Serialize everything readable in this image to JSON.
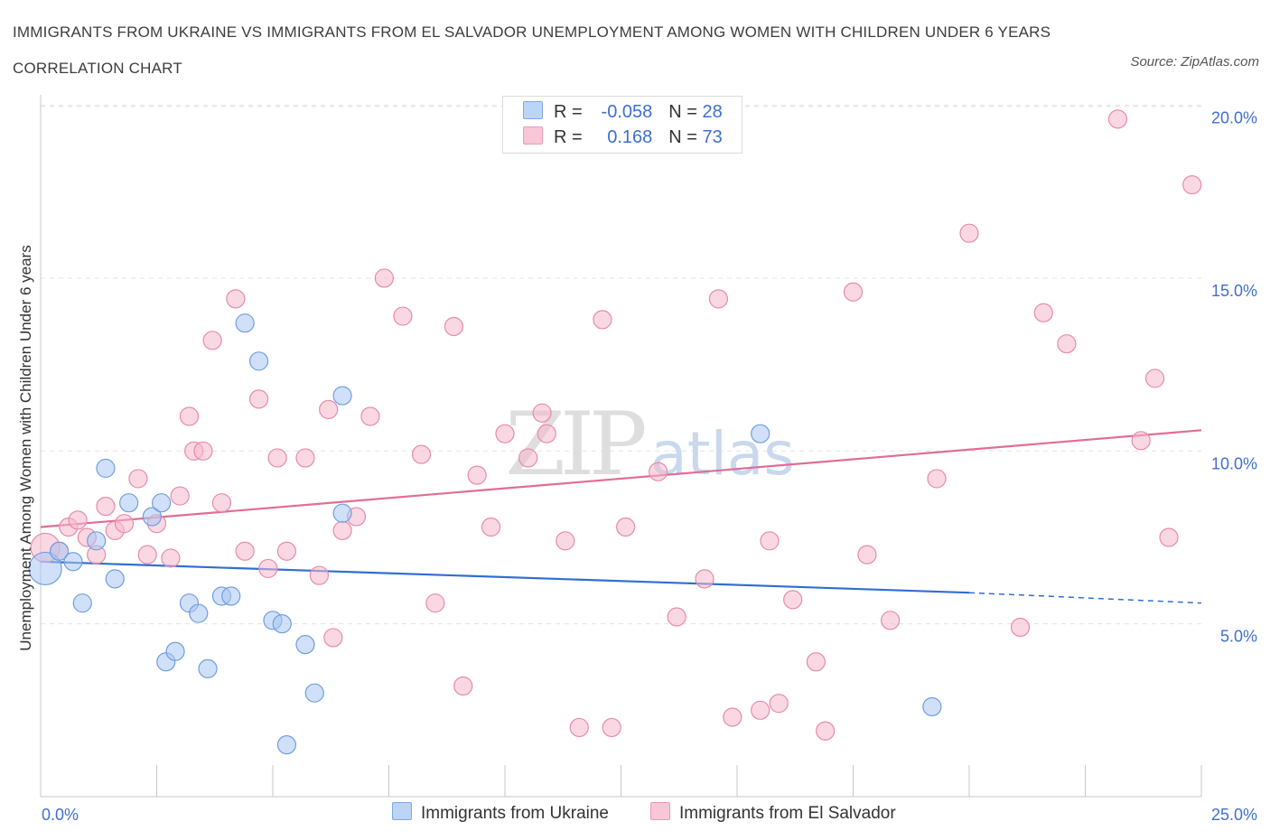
{
  "title": "IMMIGRANTS FROM UKRAINE VS IMMIGRANTS FROM EL SALVADOR UNEMPLOYMENT AMONG WOMEN WITH CHILDREN UNDER 6 YEARS CORRELATION CHART",
  "source": "Source: ZipAtlas.com",
  "watermark": {
    "zip": "ZIP",
    "atlas": "atlas"
  },
  "legend": {
    "rows": [
      {
        "r_label": "R =",
        "r_value": "-0.058",
        "n_label": "N =",
        "n_value": "28",
        "color": "#a9c6f2"
      },
      {
        "r_label": "R =",
        "r_value": "0.168",
        "n_label": "N =",
        "n_value": "73",
        "color": "#f5b8cc"
      }
    ]
  },
  "bottom_legend": [
    "Immigrants from Ukraine",
    "Immigrants from El Salvador"
  ],
  "chart_data": {
    "type": "scatter",
    "title": "IMMIGRANTS FROM UKRAINE VS IMMIGRANTS FROM EL SALVADOR UNEMPLOYMENT AMONG WOMEN WITH CHILDREN UNDER 6 YEARS CORRELATION CHART",
    "xlabel": "",
    "ylabel": "Unemployment Among Women with Children Under 6 years",
    "xlim": [
      0,
      25
    ],
    "ylim": [
      0,
      20.5
    ],
    "x_tick_labels": [
      "0.0%",
      "25.0%"
    ],
    "y_ticks": [
      5,
      10,
      15,
      20
    ],
    "y_tick_labels": [
      "5.0%",
      "10.0%",
      "15.0%",
      "20.0%"
    ],
    "grid": "horizontal dashed",
    "legend_position": "top-center",
    "series": [
      {
        "name": "Immigrants from Ukraine",
        "color": "#a9c6f2",
        "stroke": "#6f9ee0",
        "trend": {
          "x1": 0,
          "y1": 6.8,
          "x2": 20,
          "y2": 5.9,
          "dash_to_x": 25,
          "dash_to_y": 5.6,
          "color": "#2f6fd0"
        },
        "points": [
          [
            0.1,
            6.6,
            18
          ],
          [
            0.4,
            7.1,
            10
          ],
          [
            0.7,
            6.8,
            10
          ],
          [
            0.9,
            5.6,
            10
          ],
          [
            1.2,
            7.4,
            10
          ],
          [
            1.4,
            9.5,
            10
          ],
          [
            1.6,
            6.3,
            10
          ],
          [
            1.9,
            8.5,
            10
          ],
          [
            2.4,
            8.1,
            10
          ],
          [
            2.6,
            8.5,
            10
          ],
          [
            2.7,
            3.9,
            10
          ],
          [
            2.9,
            4.2,
            10
          ],
          [
            3.2,
            5.6,
            10
          ],
          [
            3.4,
            5.3,
            10
          ],
          [
            3.6,
            3.7,
            10
          ],
          [
            3.9,
            5.8,
            10
          ],
          [
            4.1,
            5.8,
            10
          ],
          [
            4.4,
            13.7,
            10
          ],
          [
            4.7,
            12.6,
            10
          ],
          [
            5.0,
            5.1,
            10
          ],
          [
            5.2,
            5.0,
            10
          ],
          [
            5.3,
            1.5,
            10
          ],
          [
            5.7,
            4.4,
            10
          ],
          [
            5.9,
            3.0,
            10
          ],
          [
            6.5,
            8.2,
            10
          ],
          [
            6.5,
            11.6,
            10
          ],
          [
            15.5,
            10.5,
            10
          ],
          [
            19.2,
            2.6,
            10
          ]
        ]
      },
      {
        "name": "Immigrants from El Salvador",
        "color": "#f5b8cc",
        "stroke": "#e98aa8",
        "trend": {
          "x1": 0,
          "y1": 7.8,
          "x2": 25,
          "y2": 10.6,
          "color": "#e26d94"
        },
        "points": [
          [
            0.1,
            7.2,
            16
          ],
          [
            0.4,
            7.1,
            10
          ],
          [
            0.6,
            7.8,
            10
          ],
          [
            0.8,
            8.0,
            10
          ],
          [
            1.0,
            7.5,
            10
          ],
          [
            1.2,
            7.0,
            10
          ],
          [
            1.4,
            8.4,
            10
          ],
          [
            1.6,
            7.7,
            10
          ],
          [
            1.8,
            7.9,
            10
          ],
          [
            2.1,
            9.2,
            10
          ],
          [
            2.3,
            7.0,
            10
          ],
          [
            2.5,
            7.9,
            10
          ],
          [
            2.8,
            6.9,
            10
          ],
          [
            3.0,
            8.7,
            10
          ],
          [
            3.2,
            11.0,
            10
          ],
          [
            3.3,
            10.0,
            10
          ],
          [
            3.5,
            10.0,
            10
          ],
          [
            3.7,
            13.2,
            10
          ],
          [
            3.9,
            8.5,
            10
          ],
          [
            4.2,
            14.4,
            10
          ],
          [
            4.4,
            7.1,
            10
          ],
          [
            4.7,
            11.5,
            10
          ],
          [
            4.9,
            6.6,
            10
          ],
          [
            5.1,
            9.8,
            10
          ],
          [
            5.3,
            7.1,
            10
          ],
          [
            5.7,
            9.8,
            10
          ],
          [
            6.0,
            6.4,
            10
          ],
          [
            6.2,
            11.2,
            10
          ],
          [
            6.3,
            4.6,
            10
          ],
          [
            6.5,
            7.7,
            10
          ],
          [
            6.8,
            8.1,
            10
          ],
          [
            7.1,
            11.0,
            10
          ],
          [
            7.4,
            15.0,
            10
          ],
          [
            7.8,
            13.9,
            10
          ],
          [
            8.2,
            9.9,
            10
          ],
          [
            8.5,
            5.6,
            10
          ],
          [
            8.9,
            13.6,
            10
          ],
          [
            9.1,
            3.2,
            10
          ],
          [
            9.4,
            9.3,
            10
          ],
          [
            9.7,
            7.8,
            10
          ],
          [
            10.0,
            10.5,
            10
          ],
          [
            10.5,
            9.8,
            10
          ],
          [
            10.8,
            11.1,
            10
          ],
          [
            10.9,
            10.5,
            10
          ],
          [
            11.3,
            7.4,
            10
          ],
          [
            11.6,
            2.0,
            10
          ],
          [
            12.1,
            13.8,
            10
          ],
          [
            12.3,
            2.0,
            10
          ],
          [
            12.6,
            7.8,
            10
          ],
          [
            13.3,
            9.4,
            10
          ],
          [
            13.7,
            5.2,
            10
          ],
          [
            14.3,
            6.3,
            10
          ],
          [
            14.6,
            14.4,
            10
          ],
          [
            14.9,
            2.3,
            10
          ],
          [
            15.5,
            2.5,
            10
          ],
          [
            15.7,
            7.4,
            10
          ],
          [
            15.9,
            2.7,
            10
          ],
          [
            16.2,
            5.7,
            10
          ],
          [
            16.7,
            3.9,
            10
          ],
          [
            16.9,
            1.9,
            10
          ],
          [
            17.5,
            14.6,
            10
          ],
          [
            17.8,
            7.0,
            10
          ],
          [
            18.3,
            5.1,
            10
          ],
          [
            19.3,
            9.2,
            10
          ],
          [
            20.0,
            16.3,
            10
          ],
          [
            21.1,
            4.9,
            10
          ],
          [
            21.6,
            14.0,
            10
          ],
          [
            22.1,
            13.1,
            10
          ],
          [
            23.2,
            19.6,
            10
          ],
          [
            23.7,
            10.3,
            10
          ],
          [
            24.0,
            12.1,
            10
          ],
          [
            24.3,
            7.5,
            10
          ],
          [
            24.8,
            17.7,
            10
          ]
        ]
      }
    ]
  }
}
